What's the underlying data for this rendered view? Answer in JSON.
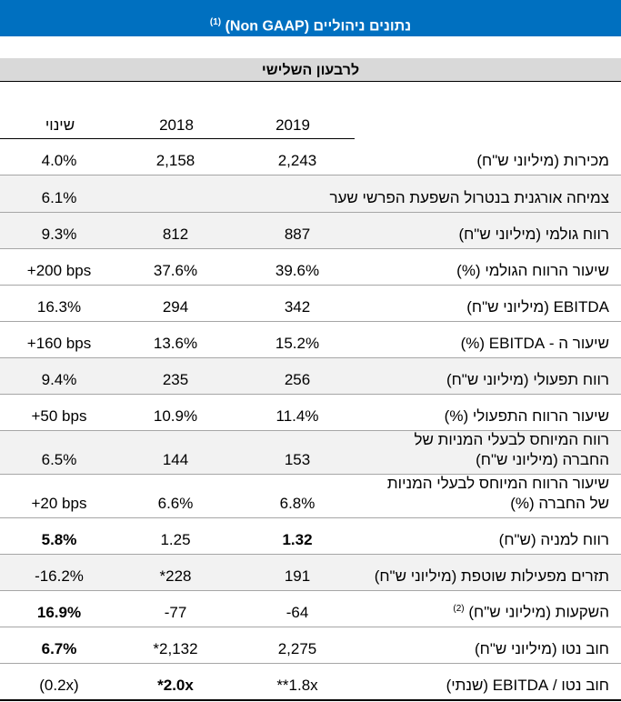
{
  "title": {
    "text": "נתונים ניהוליים (Non GAAP)",
    "footnote": "(1)"
  },
  "subtitle": "לרבעון השלישי",
  "columns": {
    "y2019": "2019",
    "y2018": "2018",
    "change": "שינוי"
  },
  "rows": [
    {
      "label": "מכירות (מיליוני ש\"ח)",
      "v2019": "2,243",
      "v2018": "2,158",
      "change": "4.0%"
    },
    {
      "label": "צמיחה אורגנית בנטרול השפעת הפרשי שער",
      "v2019": "",
      "v2018": "",
      "change": "6.1%"
    },
    {
      "label": "רווח גולמי (מיליוני ש\"ח)",
      "v2019": "887",
      "v2018": "812",
      "change": "9.3%"
    },
    {
      "label": "שיעור הרווח הגולמי (%)",
      "v2019": "39.6%",
      "v2018": "37.6%",
      "change": "+200 bps"
    },
    {
      "label": "EBITDA (מיליוני ש\"ח)",
      "v2019": "342",
      "v2018": "294",
      "change": "16.3%"
    },
    {
      "label": "שיעור ה - EBITDA (%)",
      "v2019": "15.2%",
      "v2018": "13.6%",
      "change": "+160 bps"
    },
    {
      "label": "רווח תפעולי (מיליוני ש\"ח)",
      "v2019": "256",
      "v2018": "235",
      "change": "9.4%"
    },
    {
      "label": "שיעור הרווח התפעולי (%)",
      "v2019": "11.4%",
      "v2018": "10.9%",
      "change": "+50 bps"
    },
    {
      "label": "רווח המיוחס לבעלי המניות של החברה (מיליוני ש\"ח)",
      "v2019": "153",
      "v2018": "144",
      "change": "6.5%"
    },
    {
      "label": "שיעור הרווח המיוחס לבעלי המניות של החברה (%)",
      "v2019": "6.8%",
      "v2018": "6.6%",
      "change": "+20 bps"
    },
    {
      "label": "רווח למניה (ש\"ח)",
      "v2019": "1.32",
      "v2018": "1.25",
      "change": "5.8%"
    },
    {
      "label": "תזרים מפעילות שוטפת (מיליוני ש\"ח)",
      "v2019": "191",
      "v2018": "*228",
      "change": "-16.2%"
    },
    {
      "label": "השקעות (מיליוני ש\"ח)",
      "footnote": "(2)",
      "v2019": "-64",
      "v2018": "-77",
      "change": "16.9%"
    },
    {
      "label": "חוב נטו (מיליוני ש\"ח)",
      "v2019": "2,275",
      "v2018": "*2,132",
      "change": "6.7%"
    },
    {
      "label": "חוב נטו / EBITDA (שנתי)",
      "v2019": "**1.8x",
      "v2018": "*2.0x",
      "change": "(0.2x)"
    }
  ],
  "colors": {
    "title_bg": "#0070c0",
    "subtitle_bg": "#d9d9d9",
    "shade": "#f2f2f2"
  }
}
